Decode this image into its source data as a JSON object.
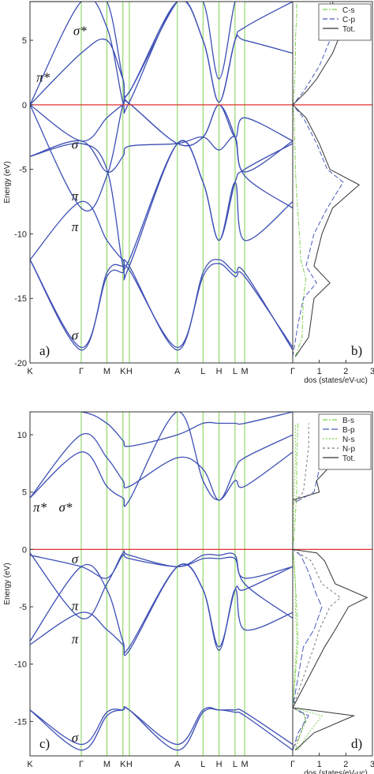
{
  "chart_data": [
    {
      "type": "line",
      "panel": "a",
      "panel_label": "a)",
      "ylabel": "Energy (eV)",
      "ylim": [
        -20,
        8
      ],
      "yticks": [
        -20,
        -15,
        -10,
        -5,
        0,
        5
      ],
      "kpoints": [
        {
          "label": "K",
          "x": 0
        },
        {
          "label": "Γ",
          "x": 1.6
        },
        {
          "label": "M",
          "x": 2.4
        },
        {
          "label": "K",
          "x": 2.9
        },
        {
          "label": "H",
          "x": 3.1
        },
        {
          "label": "A",
          "x": 4.6
        },
        {
          "label": "L",
          "x": 5.4
        },
        {
          "label": "H",
          "x": 5.9
        },
        {
          "label": "L",
          "x": 6.4
        },
        {
          "label": "M",
          "x": 6.7
        },
        {
          "label": "Γ",
          "x": 8.2
        }
      ],
      "fermi_level": 0,
      "band_color": "#3d4fb5",
      "kline_color": "#7fd14e",
      "fermi_color": "#e03030",
      "series": [
        {
          "x": [
            0,
            1.6,
            2.4,
            2.9,
            3.1,
            4.6,
            5.4,
            5.9,
            6.4,
            6.7,
            8.2
          ],
          "values": [
            -12,
            -19,
            -13,
            -12.5,
            -12.5,
            -19,
            -13,
            -12,
            -13,
            -13,
            -19
          ]
        },
        {
          "x": [
            0,
            1.6,
            2.4,
            2.9,
            3.1,
            4.6,
            5.4,
            5.9,
            6.4,
            6.7,
            8.2
          ],
          "values": [
            -12,
            -18.8,
            -13.3,
            -13,
            -12.8,
            -18.8,
            -13.3,
            -12.3,
            -13.3,
            -13.3,
            -18.8
          ]
        },
        {
          "x": [
            0,
            1.6,
            2.4,
            2.9,
            3.1,
            4.6,
            5.4,
            5.9,
            6.4,
            6.7,
            8.2
          ],
          "values": [
            -12,
            -7.5,
            -10.5,
            -12,
            -12,
            -3,
            -6,
            -10.5,
            -6,
            -10.5,
            -7.5
          ]
        },
        {
          "x": [
            0,
            1.6,
            2.4,
            2.9,
            3.1,
            4.6,
            5.4,
            5.9,
            6.4,
            6.7,
            8.2
          ],
          "values": [
            -4,
            -3,
            -5,
            -12.5,
            -12.5,
            -3,
            -6,
            -10.5,
            -6,
            -5,
            -3
          ]
        },
        {
          "x": [
            0,
            1.6,
            2.4,
            2.9,
            3.1,
            4.6,
            5.4,
            5.9,
            6.4,
            6.7,
            8.2
          ],
          "values": [
            -4,
            -2.8,
            -5.2,
            -4,
            -3.2,
            -3,
            -2.5,
            -3.5,
            -2.5,
            -5.2,
            -2.8
          ]
        },
        {
          "x": [
            0,
            1.6,
            2.4,
            2.9,
            3.1,
            4.6,
            5.4,
            5.9,
            6.4,
            6.7,
            8.2
          ],
          "values": [
            0,
            -2.8,
            -1,
            0,
            0.1,
            -3,
            -2.5,
            0,
            -2.5,
            -1,
            -2.8
          ]
        },
        {
          "x": [
            0,
            1.6,
            2.4,
            2.9,
            3.1,
            4.6,
            5.4,
            5.9,
            6.4,
            6.7,
            8.2
          ],
          "values": [
            0,
            -8,
            -5.5,
            0,
            0.1,
            -3,
            -2.5,
            0,
            -2.5,
            -5.5,
            -8
          ]
        },
        {
          "x": [
            0,
            1.6,
            2.4,
            2.9,
            3.1,
            4.6,
            5.4,
            5.9,
            6.4,
            6.7,
            8.2
          ],
          "values": [
            0,
            8,
            6,
            0.2,
            0.2,
            8,
            5,
            0.2,
            5,
            6,
            8
          ]
        },
        {
          "x": [
            0,
            1.6,
            2.4,
            2.9,
            3.1,
            4.6,
            5.4,
            5.9,
            6.4,
            6.7,
            8.2
          ],
          "values": [
            0,
            4,
            5,
            2,
            1,
            8,
            5,
            0.2,
            5,
            5,
            4
          ]
        },
        {
          "x": [
            0,
            1.6,
            2.4,
            2.9,
            3.1,
            4.6,
            5.4,
            5.9,
            6.4,
            6.7,
            8.2
          ],
          "values": [
            8,
            8,
            8,
            2,
            1,
            8,
            8,
            2,
            8,
            8,
            8
          ]
        }
      ],
      "annotations": [
        {
          "text": "σ*",
          "x": 1.35,
          "y": 5.4
        },
        {
          "text": "π*",
          "x": 0.2,
          "y": 1.8
        },
        {
          "text": "σ",
          "x": 1.3,
          "y": -3.4
        },
        {
          "text": "π",
          "x": 1.3,
          "y": -7.4
        },
        {
          "text": "π",
          "x": 1.3,
          "y": -9.8
        },
        {
          "text": "σ",
          "x": 1.3,
          "y": -18.2
        }
      ]
    },
    {
      "type": "line",
      "panel": "b",
      "panel_label": "b)",
      "xlabel": "dos (states/eV-uc)",
      "xlim": [
        0,
        3
      ],
      "xticks": [
        1,
        2,
        3
      ],
      "ylim": [
        -20,
        8
      ],
      "legend": "top-right",
      "series": [
        {
          "name": "C-s",
          "color": "#7fd14e",
          "dash": "6,2,2,2",
          "y": [
            -19.5,
            -18,
            -15,
            -13.5,
            -12,
            -10,
            -7,
            -5,
            -3,
            -1,
            0,
            1,
            3,
            5,
            7,
            8
          ],
          "values": [
            0.1,
            0.35,
            0.4,
            0.5,
            0.3,
            0.25,
            0.15,
            0.1,
            0.08,
            0.05,
            0,
            0.05,
            0.1,
            0.1,
            0.15,
            0.15
          ]
        },
        {
          "name": "C-p",
          "color": "#4a5ab8",
          "dash": "6,3",
          "y": [
            -19.5,
            -17,
            -15,
            -13.8,
            -12.5,
            -10,
            -8,
            -6,
            -5,
            -3,
            -1,
            0,
            1,
            2,
            3,
            4,
            5,
            6,
            7,
            8
          ],
          "values": [
            0,
            0.2,
            0.4,
            0.9,
            0.5,
            0.8,
            1.3,
            1.9,
            1.3,
            0.9,
            0.4,
            0,
            0.4,
            0.7,
            1.0,
            1.2,
            1.4,
            1.2,
            1.5,
            1.4
          ]
        },
        {
          "name": "Tot.",
          "color": "#333333",
          "dash": "",
          "y": [
            -19.5,
            -18,
            -15,
            -13.8,
            -12.5,
            -10,
            -8,
            -6.2,
            -5,
            -3,
            -1,
            0,
            1,
            2,
            3,
            4,
            5,
            6,
            7,
            8
          ],
          "values": [
            0.1,
            0.6,
            0.8,
            1.4,
            0.8,
            1.1,
            1.5,
            2.5,
            1.4,
            1.0,
            0.5,
            0,
            0.5,
            0.9,
            1.2,
            1.5,
            1.7,
            1.3,
            1.6,
            1.5
          ]
        }
      ]
    },
    {
      "type": "line",
      "panel": "c",
      "panel_label": "c)",
      "ylabel": "Energy (eV)",
      "ylim": [
        -18,
        12
      ],
      "yticks": [
        -15,
        -10,
        -5,
        0,
        5,
        10
      ],
      "kpoints": [
        {
          "label": "K",
          "x": 0
        },
        {
          "label": "Γ",
          "x": 1.6
        },
        {
          "label": "M",
          "x": 2.4
        },
        {
          "label": "K",
          "x": 2.9
        },
        {
          "label": "H",
          "x": 3.1
        },
        {
          "label": "A",
          "x": 4.6
        },
        {
          "label": "L",
          "x": 5.4
        },
        {
          "label": "H",
          "x": 5.9
        },
        {
          "label": "L",
          "x": 6.4
        },
        {
          "label": "M",
          "x": 6.7
        },
        {
          "label": "Γ",
          "x": 8.2
        }
      ],
      "fermi_level": 0,
      "series": [
        {
          "x": [
            0,
            1.6,
            2.4,
            2.9,
            3.1,
            4.6,
            5.4,
            5.9,
            6.4,
            6.7,
            8.2
          ],
          "values": [
            -14,
            -17.5,
            -14.5,
            -14,
            -14,
            -17.5,
            -14.2,
            -14,
            -14.2,
            -14.5,
            -17.5
          ]
        },
        {
          "x": [
            0,
            1.6,
            2.4,
            2.9,
            3.1,
            4.6,
            5.4,
            5.9,
            6.4,
            6.7,
            8.2
          ],
          "values": [
            -14,
            -17,
            -14.2,
            -14,
            -14,
            -17,
            -14,
            -14,
            -14,
            -14.2,
            -17
          ]
        },
        {
          "x": [
            0,
            1.6,
            2.4,
            2.9,
            3.1,
            4.6,
            5.4,
            5.9,
            6.4,
            6.7,
            8.2
          ],
          "values": [
            -8.3,
            -5.5,
            -7,
            -8.3,
            -8.8,
            -1.5,
            -3.5,
            -8.8,
            -3.5,
            -7,
            -5.5
          ]
        },
        {
          "x": [
            0,
            1.6,
            2.4,
            2.9,
            3.1,
            4.6,
            5.4,
            5.9,
            6.4,
            6.7,
            8.2
          ],
          "values": [
            -8,
            -1.5,
            -3.5,
            -8,
            -8.5,
            -1.5,
            -3.5,
            -8.5,
            -3.5,
            -3.5,
            -1.5
          ]
        },
        {
          "x": [
            0,
            1.6,
            2.4,
            2.9,
            3.1,
            4.6,
            5.4,
            5.9,
            6.4,
            6.7,
            8.2
          ],
          "values": [
            -0.5,
            -1.5,
            -2.5,
            -0.5,
            -0.8,
            -1.5,
            -0.8,
            -0.8,
            -0.8,
            -2.5,
            -1.5
          ]
        },
        {
          "x": [
            0,
            1.6,
            2.4,
            2.9,
            3.1,
            4.6,
            5.4,
            5.9,
            6.4,
            6.7,
            8.2
          ],
          "values": [
            -0.3,
            -6,
            -3,
            -0.3,
            -0.5,
            -1.5,
            -0.5,
            -0.5,
            -0.5,
            -3,
            -6
          ]
        },
        {
          "x": [
            0,
            1.6,
            2.4,
            2.9,
            3.1,
            4.6,
            5.4,
            5.9,
            6.4,
            6.7,
            8.2
          ],
          "values": [
            4.5,
            8.5,
            5.5,
            4.5,
            4.3,
            12,
            6,
            4.3,
            6,
            5.5,
            8.5
          ]
        },
        {
          "x": [
            0,
            1.6,
            2.4,
            2.9,
            3.1,
            4.6,
            5.4,
            5.9,
            6.4,
            6.7,
            8.2
          ],
          "values": [
            4.5,
            10,
            8,
            6,
            5.5,
            8,
            7,
            4.3,
            7,
            8,
            10
          ]
        },
        {
          "x": [
            0,
            1.6,
            2.4,
            2.9,
            3.1,
            4.6,
            5.4,
            5.9,
            6.4,
            6.7,
            8.2
          ],
          "values": [
            12,
            12,
            11,
            9.5,
            9,
            10,
            11,
            11,
            11,
            11,
            12
          ]
        }
      ],
      "annotations": [
        {
          "text": "π*",
          "x": 0.1,
          "y": 3.3
        },
        {
          "text": "σ*",
          "x": 0.9,
          "y": 3.3
        },
        {
          "text": "σ",
          "x": 1.3,
          "y": -1.2
        },
        {
          "text": "π",
          "x": 1.3,
          "y": -5.3
        },
        {
          "text": "π",
          "x": 1.3,
          "y": -8.2
        },
        {
          "text": "σ",
          "x": 1.3,
          "y": -16.8
        }
      ]
    },
    {
      "type": "line",
      "panel": "d",
      "panel_label": "d)",
      "xlabel": "dos (states/eV-uc)",
      "xlim": [
        0,
        3
      ],
      "xticks": [
        1,
        2,
        3
      ],
      "ylim": [
        -18,
        12
      ],
      "legend": "top-right",
      "series": [
        {
          "name": "B-s",
          "color": "#7fd14e",
          "dash": "6,2,2,2",
          "y": [
            -17.5,
            -16,
            -15,
            -14.3,
            -13.8,
            -8,
            -5,
            -3,
            -1,
            0,
            1,
            3,
            5,
            8,
            11
          ],
          "values": [
            0.1,
            0.3,
            0.5,
            0.4,
            0,
            0.2,
            0.15,
            0.1,
            0.05,
            0,
            0.05,
            0.1,
            0.15,
            0.15,
            0.2
          ]
        },
        {
          "name": "B-p",
          "color": "#4a5ab8",
          "dash": "8,3",
          "y": [
            -17.5,
            -16,
            -14.5,
            -13.8,
            -8.5,
            -7,
            -5,
            -4,
            -2,
            -0.5,
            0,
            4,
            5,
            7,
            9,
            11
          ],
          "values": [
            0,
            0.2,
            0.6,
            0,
            0.4,
            0.8,
            1.1,
            0.9,
            0.6,
            0.3,
            0,
            0,
            0.8,
            1.0,
            1.2,
            1.1
          ]
        },
        {
          "name": "N-s",
          "color": "#7fd14e",
          "dash": "2,2",
          "y": [
            -17.5,
            -16,
            -14.5,
            -13.8,
            -8,
            -5,
            -3,
            -1,
            0,
            5,
            8,
            11
          ],
          "values": [
            0.2,
            0.6,
            1.1,
            0,
            0.15,
            0.1,
            0.1,
            0.05,
            0,
            0.05,
            0.1,
            0.1
          ]
        },
        {
          "name": "N-p",
          "color": "#7a7a7a",
          "dash": "3,3",
          "y": [
            -17.5,
            -16,
            -14.5,
            -13.8,
            -8.5,
            -7,
            -5,
            -4.2,
            -3,
            -1,
            0,
            4,
            5,
            7,
            9,
            11
          ],
          "values": [
            0,
            0.3,
            0.5,
            0,
            0.8,
            1.0,
            1.4,
            1.8,
            1.1,
            0.7,
            0,
            0,
            0.4,
            0.5,
            0.6,
            0.6
          ]
        },
        {
          "name": "Tot.",
          "color": "#333333",
          "dash": "",
          "y": [
            -17.5,
            -16,
            -14.5,
            -13.8,
            -8.5,
            -7,
            -5,
            -4.2,
            -3,
            -1,
            -0.3,
            0,
            4.3,
            5,
            6,
            7,
            8,
            9,
            10,
            11
          ],
          "values": [
            0.1,
            0.8,
            2.3,
            0,
            1.2,
            1.6,
            2.1,
            2.8,
            1.6,
            1.2,
            0.9,
            0,
            0,
            1.0,
            0.9,
            1.3,
            1.2,
            1.5,
            1.3,
            1.4
          ]
        }
      ]
    }
  ]
}
